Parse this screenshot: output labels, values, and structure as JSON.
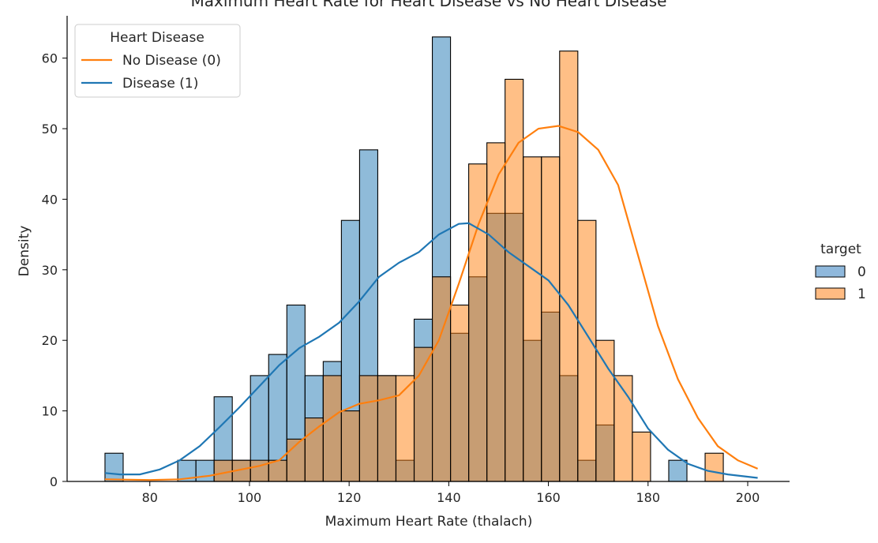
{
  "chart_data": {
    "type": "bar",
    "title": "Maximum Heart Rate for Heart Disease vs No Heart Disease",
    "xlabel": "Maximum Heart Rate (thalach)",
    "ylabel": "Density",
    "xlim": [
      63.4,
      208.4
    ],
    "ylim": [
      0,
      66
    ],
    "xticks": [
      80,
      100,
      120,
      140,
      160,
      180,
      200
    ],
    "yticks": [
      0,
      10,
      20,
      30,
      40,
      50,
      60
    ],
    "bin_edges": [
      71,
      74.65,
      78.3,
      81.95,
      85.6,
      89.25,
      92.9,
      96.55,
      100.2,
      103.85,
      107.5,
      111.15,
      114.8,
      118.45,
      122.1,
      125.75,
      129.4,
      133.05,
      136.7,
      140.35,
      144,
      147.65,
      151.3,
      154.95,
      158.6,
      162.25,
      165.9,
      169.55,
      173.2,
      176.85,
      180.5,
      184.15,
      187.8,
      191.45,
      195.1,
      198.75,
      202.4
    ],
    "series": [
      {
        "name": "0",
        "color": "#1f77b4",
        "values": [
          4,
          0,
          0,
          0,
          3,
          3,
          12,
          3,
          15,
          18,
          25,
          15,
          17,
          37,
          47,
          15,
          3,
          23,
          63,
          21,
          29,
          38,
          38,
          20,
          24,
          15,
          3,
          8,
          0,
          0,
          0,
          3,
          0,
          0,
          0,
          0
        ]
      },
      {
        "name": "1",
        "color": "#ff7f0e",
        "values": [
          0,
          0,
          0,
          0,
          0,
          0,
          3,
          3,
          3,
          3,
          6,
          9,
          15,
          10,
          15,
          15,
          15,
          19,
          29,
          25,
          45,
          48,
          57,
          46,
          46,
          61,
          37,
          20,
          15,
          7,
          0,
          0,
          0,
          4,
          0,
          0
        ]
      }
    ],
    "kde_lines": [
      {
        "name": "No Disease (0)",
        "color": "#ff7f0e",
        "x": [
          71,
          80,
          86,
          92,
          97,
          102,
          106,
          110,
          114,
          118,
          122,
          126,
          130,
          134,
          138,
          142,
          146,
          150,
          154,
          158,
          162,
          166,
          170,
          174,
          178,
          182,
          186,
          190,
          194,
          198,
          202
        ],
        "y": [
          0.3,
          0.2,
          0.3,
          0.8,
          1.5,
          2.2,
          3.0,
          5.6,
          7.8,
          9.8,
          11.0,
          11.5,
          12.2,
          15.0,
          20.0,
          28.0,
          36.5,
          43.5,
          48.0,
          50.0,
          50.4,
          49.5,
          47.0,
          42.0,
          32.0,
          22.0,
          14.5,
          9.0,
          5.0,
          3.0,
          1.8
        ]
      },
      {
        "name": "Disease (1)",
        "color": "#1f77b4",
        "x": [
          71,
          74,
          78,
          82,
          86,
          90,
          94,
          98,
          102,
          106,
          110,
          114,
          118,
          122,
          126,
          130,
          134,
          138,
          142,
          144,
          148,
          152,
          156,
          160,
          164,
          168,
          172,
          176,
          180,
          184,
          188,
          192,
          196,
          202
        ],
        "y": [
          1.2,
          1.0,
          1.0,
          1.7,
          3.0,
          5.0,
          7.7,
          10.5,
          13.5,
          16.5,
          18.9,
          20.5,
          22.5,
          25.5,
          29.0,
          31.0,
          32.5,
          35.0,
          36.5,
          36.6,
          35.0,
          32.5,
          30.5,
          28.5,
          25.0,
          20.5,
          16.0,
          12.0,
          7.5,
          4.5,
          2.5,
          1.5,
          1.0,
          0.5
        ]
      }
    ],
    "legend_inside": {
      "title": "Heart Disease",
      "placement": "upper-left",
      "entries": [
        {
          "label": "No Disease (0)",
          "color": "#ff7f0e"
        },
        {
          "label": "Disease (1)",
          "color": "#1f77b4"
        }
      ]
    },
    "legend_outside": {
      "title": "target",
      "placement": "right",
      "entries": [
        {
          "label": "0",
          "color": "#8fb8dc"
        },
        {
          "label": "1",
          "color": "#ffbb82"
        }
      ]
    }
  }
}
